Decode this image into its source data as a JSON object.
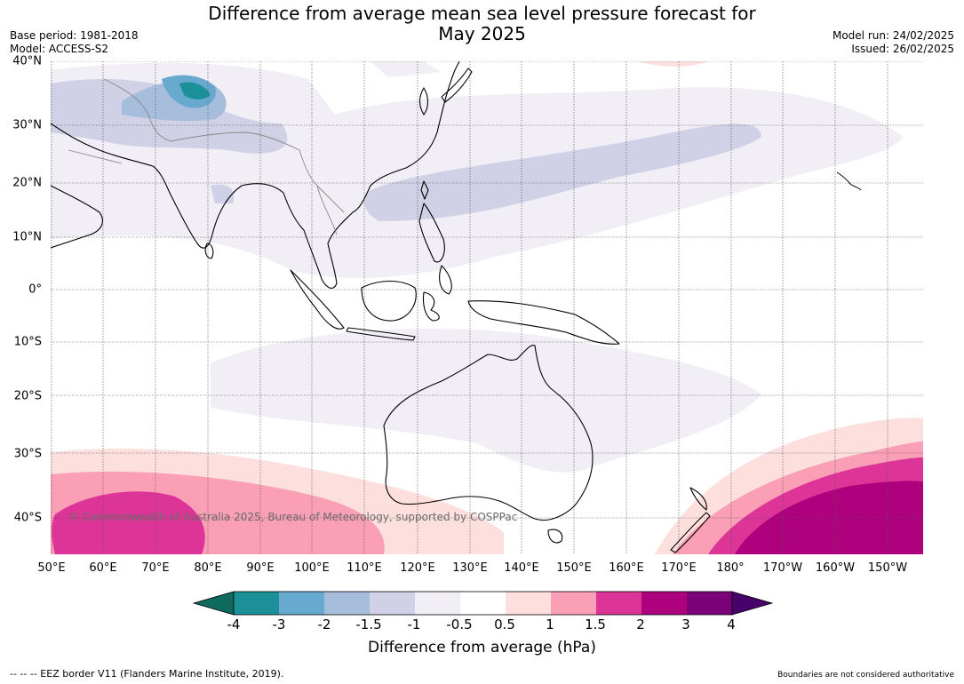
{
  "title_line1": "Difference from average mean sea level pressure forecast for",
  "title_line2": "May 2025",
  "base_period": "Base period: 1981-2018",
  "model": "Model: ACCESS-S2",
  "model_run": "Model run: 24/02/2025",
  "issued": "Issued: 26/02/2025",
  "copyright": "© Commonwealth of Australia 2025, Bureau of Meteorology, supported by COSPPac",
  "lat_labels": [
    "40°N",
    "30°N",
    "20°N",
    "10°N",
    "0°",
    "10°S",
    "20°S",
    "30°S",
    "40°S"
  ],
  "lon_labels": [
    "50°E",
    "60°E",
    "70°E",
    "80°E",
    "90°E",
    "100°E",
    "110°E",
    "120°E",
    "130°E",
    "140°E",
    "150°E",
    "160°E",
    "170°E",
    "180°",
    "170°W",
    "160°W",
    "150°W"
  ],
  "colorbar": {
    "ticks": [
      "-4",
      "-3",
      "-2",
      "-1.5",
      "-1",
      "-0.5",
      "0.5",
      "1",
      "1.5",
      "2",
      "3",
      "4"
    ],
    "colors": [
      "#0f6b5e",
      "#1c9099",
      "#67a9cf",
      "#a6bddb",
      "#d0d1e6",
      "#f1eef6",
      "#ffffff",
      "#fde0dd",
      "#fa9fb5",
      "#dd3497",
      "#ae017e",
      "#7a0177",
      "#49006a"
    ],
    "label": "Difference from average (hPa)"
  },
  "footer_left": "--  --  -- EEZ border V11 (Flanders Marine Institute, 2019).",
  "footer_right": "Boundaries are not considered authoritative"
}
